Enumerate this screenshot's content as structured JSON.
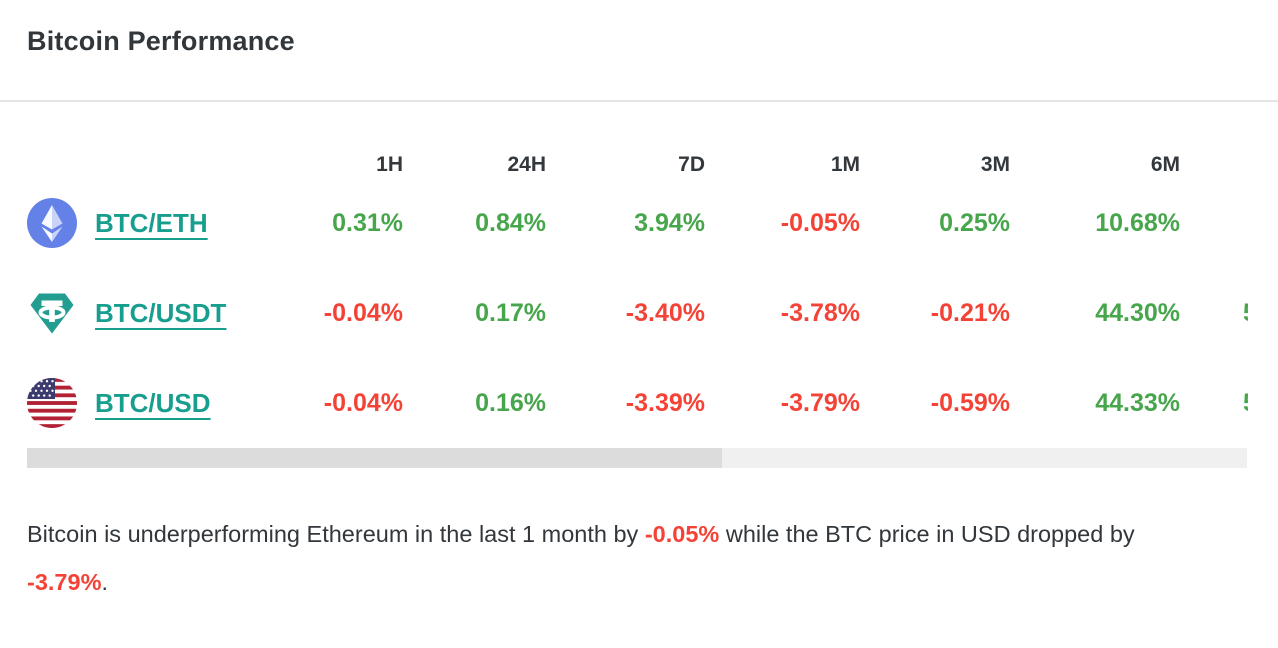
{
  "colors": {
    "positive": "#47a54b",
    "negative": "#f44336",
    "link": "#189e8e",
    "eth_icon_bg": "#6481e8",
    "usdt_icon": "#229d8f",
    "flag_blue": "#3c3b6e",
    "flag_red": "#b22234"
  },
  "header": {
    "title": "Bitcoin Performance"
  },
  "table": {
    "column_headers": [
      "1H",
      "24H",
      "7D",
      "1M",
      "3M",
      "6M"
    ],
    "rows": [
      {
        "pair": "BTC/ETH",
        "icon": "ethereum-icon",
        "values": [
          "0.31%",
          "0.84%",
          "3.94%",
          "-0.05%",
          "0.25%",
          "10.68%"
        ],
        "next_value_fragment": ""
      },
      {
        "pair": "BTC/USDT",
        "icon": "tether-icon",
        "values": [
          "-0.04%",
          "0.17%",
          "-3.40%",
          "-3.78%",
          "-0.21%",
          "44.30%"
        ],
        "next_value_fragment": "5"
      },
      {
        "pair": "BTC/USD",
        "icon": "us-flag-icon",
        "values": [
          "-0.04%",
          "0.16%",
          "-3.39%",
          "-3.79%",
          "-0.59%",
          "44.33%"
        ],
        "next_value_fragment": "5"
      }
    ]
  },
  "scrollbar": {
    "thumb_percent": 57
  },
  "footer": {
    "segments": [
      {
        "text": "Bitcoin is underperforming Ethereum in the last 1 month by ",
        "emphasis": false
      },
      {
        "text": "-0.05%",
        "emphasis": true
      },
      {
        "text": " while the BTC price in USD dropped by ",
        "emphasis": false
      },
      {
        "text": "-3.79%",
        "emphasis": true
      },
      {
        "text": ".",
        "emphasis": false
      }
    ]
  }
}
